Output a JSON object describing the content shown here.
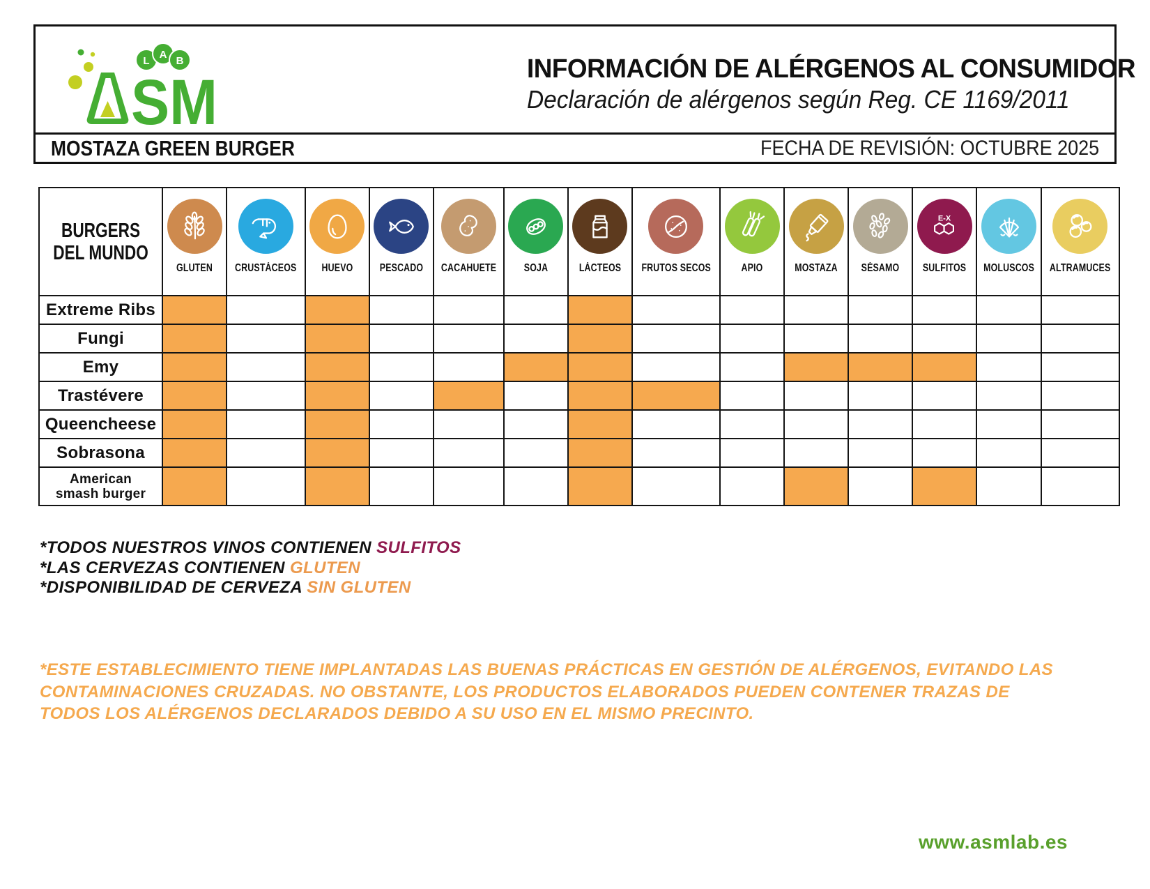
{
  "header": {
    "title": "INFORMACIÓN DE ALÉRGENOS AL CONSUMIDOR",
    "subtitle": "Declaración de alérgenos según Reg. CE 1169/2011"
  },
  "logo": {
    "sm_text": "SM",
    "lab_l": "L",
    "lab_a": "A",
    "lab_b": "B"
  },
  "subheader": {
    "establishment": "MOSTAZA GREEN BURGER",
    "revision": "FECHA DE REVISIÓN: OCTUBRE 2025"
  },
  "table": {
    "corner_title_line1": "BURGERS",
    "corner_title_line2": "DEL MUNDO",
    "sulfitos_badge": "E-X",
    "allergens": [
      {
        "id": "gluten",
        "label": "GLUTEN",
        "color": "#CE8A4E",
        "icon": "wheat-icon"
      },
      {
        "id": "crustaceos",
        "label": "CRUSTÁCEOS",
        "color": "#29A9E0",
        "icon": "shrimp-icon"
      },
      {
        "id": "huevo",
        "label": "HUEVO",
        "color": "#F0A845",
        "icon": "egg-icon"
      },
      {
        "id": "pescado",
        "label": "PESCADO",
        "color": "#2B4484",
        "icon": "fish-icon"
      },
      {
        "id": "cacahuete",
        "label": "CACAHUETE",
        "color": "#C49B70",
        "icon": "peanut-icon"
      },
      {
        "id": "soja",
        "label": "SOJA",
        "color": "#2AA851",
        "icon": "soy-icon"
      },
      {
        "id": "lacteos",
        "label": "LÁCTEOS",
        "color": "#5D3A1E",
        "icon": "milk-icon"
      },
      {
        "id": "frutos_secos",
        "label": "FRUTOS SECOS",
        "color": "#B66A5B",
        "icon": "walnut-icon"
      },
      {
        "id": "apio",
        "label": "APIO",
        "color": "#94C83D",
        "icon": "celery-icon"
      },
      {
        "id": "mostaza",
        "label": "MOSTAZA",
        "color": "#C6A144",
        "icon": "mustard-icon"
      },
      {
        "id": "sesamo",
        "label": "SÉSAMO",
        "color": "#B3AA95",
        "icon": "sesame-icon"
      },
      {
        "id": "sulfitos",
        "label": "SULFITOS",
        "color": "#8F1A4E",
        "icon": "sulfites-icon"
      },
      {
        "id": "moluscos",
        "label": "MOLUSCOS",
        "color": "#63C7E2",
        "icon": "shell-icon"
      },
      {
        "id": "altramuces",
        "label": "ALTRAMUCES",
        "color": "#E9CD60",
        "icon": "lupin-icon"
      }
    ],
    "rows": [
      {
        "name_lines": [
          "Extreme Ribs"
        ],
        "marks": [
          "gluten",
          "huevo",
          "lacteos"
        ]
      },
      {
        "name_lines": [
          "Fungi"
        ],
        "marks": [
          "gluten",
          "huevo",
          "lacteos"
        ]
      },
      {
        "name_lines": [
          "Emy"
        ],
        "marks": [
          "gluten",
          "huevo",
          "soja",
          "lacteos",
          "mostaza",
          "sesamo",
          "sulfitos"
        ]
      },
      {
        "name_lines": [
          "Trastévere"
        ],
        "marks": [
          "gluten",
          "huevo",
          "cacahuete",
          "lacteos",
          "frutos_secos"
        ]
      },
      {
        "name_lines": [
          "Queencheese"
        ],
        "marks": [
          "gluten",
          "huevo",
          "lacteos"
        ]
      },
      {
        "name_lines": [
          "Sobrasona"
        ],
        "marks": [
          "gluten",
          "huevo",
          "lacteos"
        ]
      },
      {
        "name_lines": [
          "American",
          "smash burger"
        ],
        "marks": [
          "gluten",
          "huevo",
          "lacteos",
          "mostaza",
          "sulfitos"
        ]
      }
    ]
  },
  "notes": [
    {
      "text": "*TODOS NUESTROS VINOS CONTIENEN ",
      "highlight": "SULFITOS",
      "highlight_color": "#8F1A4E"
    },
    {
      "text": "*LAS CERVEZAS CONTIENEN ",
      "highlight": "GLUTEN",
      "highlight_color": "#EC9A4E"
    },
    {
      "text": "*DISPONIBILIDAD DE CERVEZA ",
      "highlight": "SIN GLUTEN",
      "highlight_color": "#EC9A4E"
    }
  ],
  "disclaimer": {
    "text": "*ESTE ESTABLECIMIENTO TIENE IMPLANTADAS LAS BUENAS PRÁCTICAS EN GESTIÓN DE ALÉRGENOS, EVITANDO LAS CONTAMINACIONES CRUZADAS. NO OBSTANTE, LOS PRODUCTOS ELABORADOS PUEDEN CONTENER TRAZAS DE TODOS LOS ALÉRGENOS DECLARADOS DEBIDO A SU USO EN EL MISMO PRECINTO."
  },
  "footer": {
    "website": "www.asmlab.es"
  },
  "colors": {
    "mark_orange": "#F6A94F",
    "disclaimer_orange": "#F5A94E",
    "brand_green": "#45AE33",
    "bubble_yellow_green": "#C3CF21",
    "footer_green": "#59A02C",
    "border_black": "#141414"
  }
}
